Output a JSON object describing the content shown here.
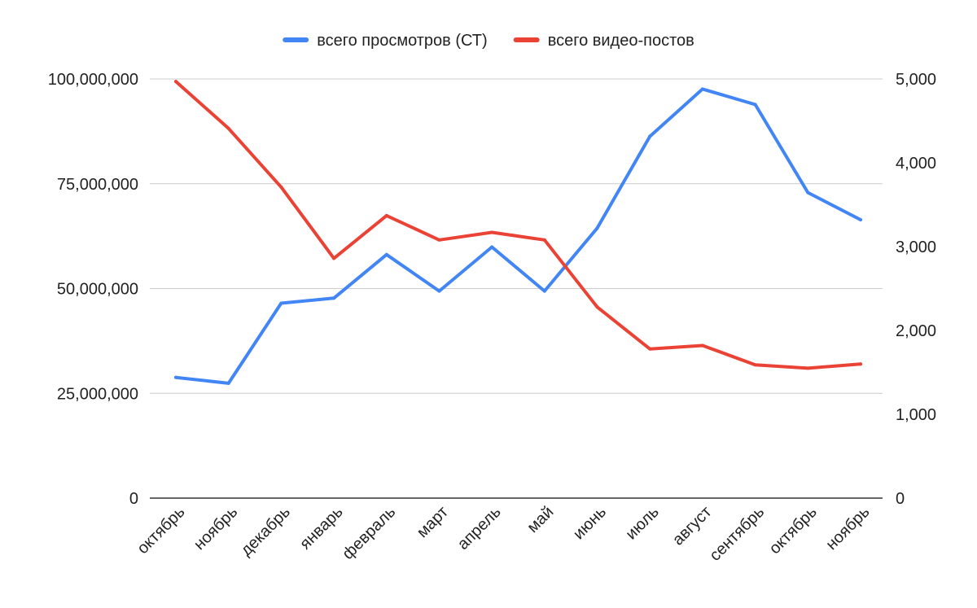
{
  "chart_data": {
    "type": "line",
    "categories": [
      "октябрь",
      "ноябрь",
      "декабрь",
      "январь",
      "февраль",
      "март",
      "апрель",
      "май",
      "июнь",
      "июль",
      "август",
      "сентябрь",
      "октябрь",
      "ноябрь"
    ],
    "series": [
      {
        "name": "всего просмотров (СТ)",
        "axis": "left",
        "color": "#4285f4",
        "values": [
          28800000,
          27400000,
          46500000,
          47700000,
          58100000,
          49400000,
          59900000,
          49400000,
          64400000,
          86300000,
          97600000,
          93900000,
          72900000,
          66400000
        ]
      },
      {
        "name": "всего видео-постов",
        "axis": "right",
        "color": "#ea4335",
        "values": [
          4970,
          4410,
          3710,
          2860,
          3370,
          3080,
          3170,
          3080,
          2280,
          1780,
          1820,
          1590,
          1550,
          1600
        ]
      }
    ],
    "y_left": {
      "range": [
        0,
        100000000
      ],
      "ticks": [
        0,
        25000000,
        50000000,
        75000000,
        100000000
      ],
      "tick_labels": [
        "0",
        "25,000,000",
        "50,000,000",
        "75,000,000",
        "100,000,000"
      ]
    },
    "y_right": {
      "range": [
        0,
        5000
      ],
      "ticks": [
        0,
        1000,
        2000,
        3000,
        4000,
        5000
      ],
      "tick_labels": [
        "0",
        "1,000",
        "2,000",
        "3,000",
        "4,000",
        "5,000"
      ]
    },
    "legend_position": "top-center",
    "grid": true,
    "colors": {
      "grid": "#cccccc",
      "baseline": "#333333"
    }
  }
}
